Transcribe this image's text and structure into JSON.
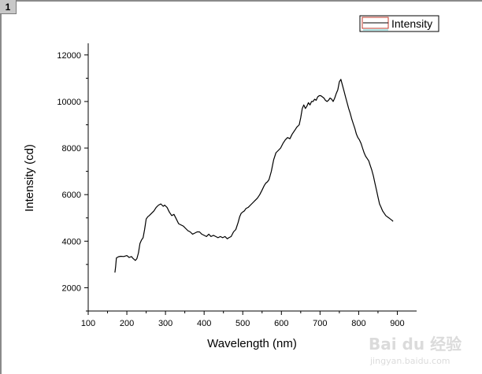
{
  "page_badge": "1",
  "watermark": {
    "logo": "Bai du 经验",
    "url": "jingyan.baidu.com"
  },
  "colors": {
    "line": "#000000",
    "legend_box_border": "#c0392b",
    "legend_swatch_line": "#5fd3d3"
  },
  "chart_data": {
    "type": "line",
    "xlabel": "Wavelength (nm)",
    "ylabel": "Intensity (cd)",
    "xlim": [
      100,
      950
    ],
    "ylim": [
      1000,
      12500
    ],
    "x_ticks": [
      100,
      200,
      300,
      400,
      500,
      600,
      700,
      800,
      900
    ],
    "y_ticks": [
      2000,
      4000,
      6000,
      8000,
      10000,
      12000
    ],
    "grid": false,
    "legend_position": "top-right",
    "series": [
      {
        "name": "Intensity",
        "x": [
          169,
          171,
          173,
          178,
          184,
          192,
          200,
          206,
          212,
          216,
          222,
          226,
          230,
          234,
          238,
          242,
          246,
          250,
          254,
          258,
          264,
          270,
          276,
          282,
          288,
          294,
          298,
          304,
          310,
          316,
          322,
          328,
          334,
          340,
          346,
          352,
          358,
          364,
          370,
          376,
          382,
          388,
          394,
          400,
          406,
          412,
          418,
          424,
          430,
          436,
          442,
          448,
          454,
          460,
          464,
          470,
          476,
          482,
          488,
          492,
          496,
          500,
          504,
          508,
          514,
          520,
          526,
          532,
          538,
          544,
          550,
          556,
          560,
          564,
          568,
          574,
          580,
          586,
          592,
          598,
          604,
          610,
          616,
          622,
          628,
          634,
          640,
          646,
          650,
          654,
          658,
          662,
          666,
          670,
          674,
          678,
          682,
          686,
          690,
          694,
          698,
          702,
          706,
          710,
          714,
          718,
          722,
          726,
          730,
          734,
          738,
          742,
          746,
          750,
          754,
          758,
          762,
          766,
          770,
          774,
          778,
          782,
          786,
          790,
          794,
          798,
          802,
          806,
          810,
          814,
          818,
          822,
          826,
          830,
          834,
          838,
          842,
          846,
          850,
          854,
          858,
          862,
          866,
          870,
          874,
          878,
          882,
          886,
          889
        ],
        "y": [
          2650,
          2900,
          3280,
          3330,
          3350,
          3340,
          3380,
          3300,
          3340,
          3260,
          3170,
          3250,
          3500,
          3900,
          4050,
          4150,
          4500,
          4950,
          5050,
          5100,
          5200,
          5300,
          5450,
          5550,
          5600,
          5500,
          5550,
          5450,
          5250,
          5100,
          5150,
          4950,
          4750,
          4700,
          4650,
          4550,
          4450,
          4400,
          4300,
          4350,
          4400,
          4400,
          4300,
          4250,
          4200,
          4300,
          4200,
          4250,
          4200,
          4150,
          4200,
          4150,
          4200,
          4100,
          4150,
          4200,
          4400,
          4500,
          4800,
          5050,
          5200,
          5250,
          5300,
          5400,
          5450,
          5550,
          5650,
          5750,
          5850,
          6000,
          6200,
          6400,
          6500,
          6550,
          6650,
          7000,
          7500,
          7800,
          7900,
          8000,
          8200,
          8350,
          8450,
          8400,
          8600,
          8750,
          8900,
          9000,
          9300,
          9700,
          9850,
          9700,
          9800,
          9950,
          9850,
          10000,
          10000,
          10100,
          10050,
          10200,
          10250,
          10250,
          10200,
          10150,
          10050,
          10000,
          10050,
          10150,
          10100,
          10000,
          10150,
          10350,
          10500,
          10850,
          10950,
          10700,
          10450,
          10200,
          9950,
          9700,
          9500,
          9250,
          9050,
          8850,
          8600,
          8450,
          8350,
          8200,
          8000,
          7800,
          7650,
          7550,
          7450,
          7250,
          7050,
          6800,
          6500,
          6200,
          5900,
          5600,
          5450,
          5300,
          5200,
          5100,
          5050,
          5000,
          4950,
          4900,
          4850
        ]
      }
    ]
  }
}
